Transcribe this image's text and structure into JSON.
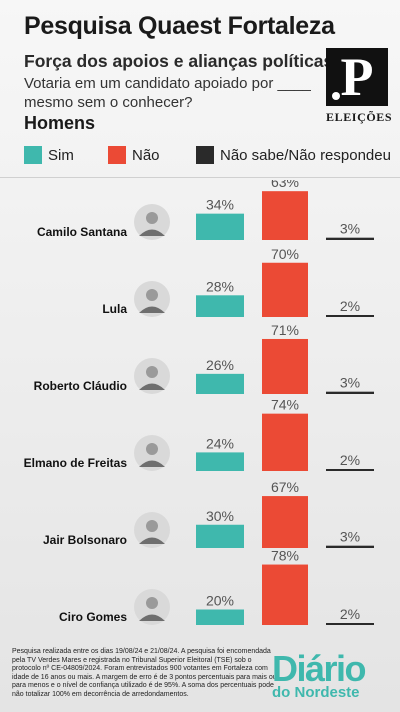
{
  "header": {
    "title": "Pesquisa Quaest Fortaleza",
    "subtitle": "Força dos apoios e alianças políticas",
    "question": "Votaria em um candidato apoiado por ____ mesmo sem o conhecer?",
    "group": "Homens"
  },
  "logo": {
    "mark": "P",
    "label": "ELEIÇÕES"
  },
  "colors": {
    "sim": "#3fb8ad",
    "nao": "#eb4a35",
    "nao_sabe": "#2a2a2a"
  },
  "chart_data": {
    "type": "bar",
    "categories": [
      "Camilo Santana",
      "Lula",
      "Roberto Cláudio",
      "Elmano de Freitas",
      "Jair Bolsonaro",
      "Ciro Gomes"
    ],
    "series": [
      {
        "name": "Sim",
        "values": [
          34,
          28,
          26,
          24,
          30,
          20
        ]
      },
      {
        "name": "Não",
        "values": [
          63,
          70,
          71,
          74,
          67,
          78
        ]
      },
      {
        "name": "Não sabe/Não respondeu",
        "values": [
          3,
          2,
          3,
          2,
          3,
          2
        ]
      }
    ],
    "value_suffix": "%",
    "ylim": [
      0,
      80
    ],
    "legend": "top"
  },
  "footer": {
    "note": "Pesquisa realizada entre os dias 19/08/24 e 21/08/24. A pesquisa foi encomendada pela TV Verdes Mares e registrada no Tribunal Superior Eleitoral (TSE) sob o protocolo nº CE-04809/2024. Foram entrevistados 900 votantes em Fortaleza com idade de 16 anos ou mais. A margem de erro é de 3 pontos percentuais para mais ou para menos e o nível de confiança utilizado é de 95%. A soma dos percentuais pode não totalizar 100% em decorrência de arredondamentos.",
    "brand_name": "Diário",
    "brand_sub": "do Nordeste"
  }
}
